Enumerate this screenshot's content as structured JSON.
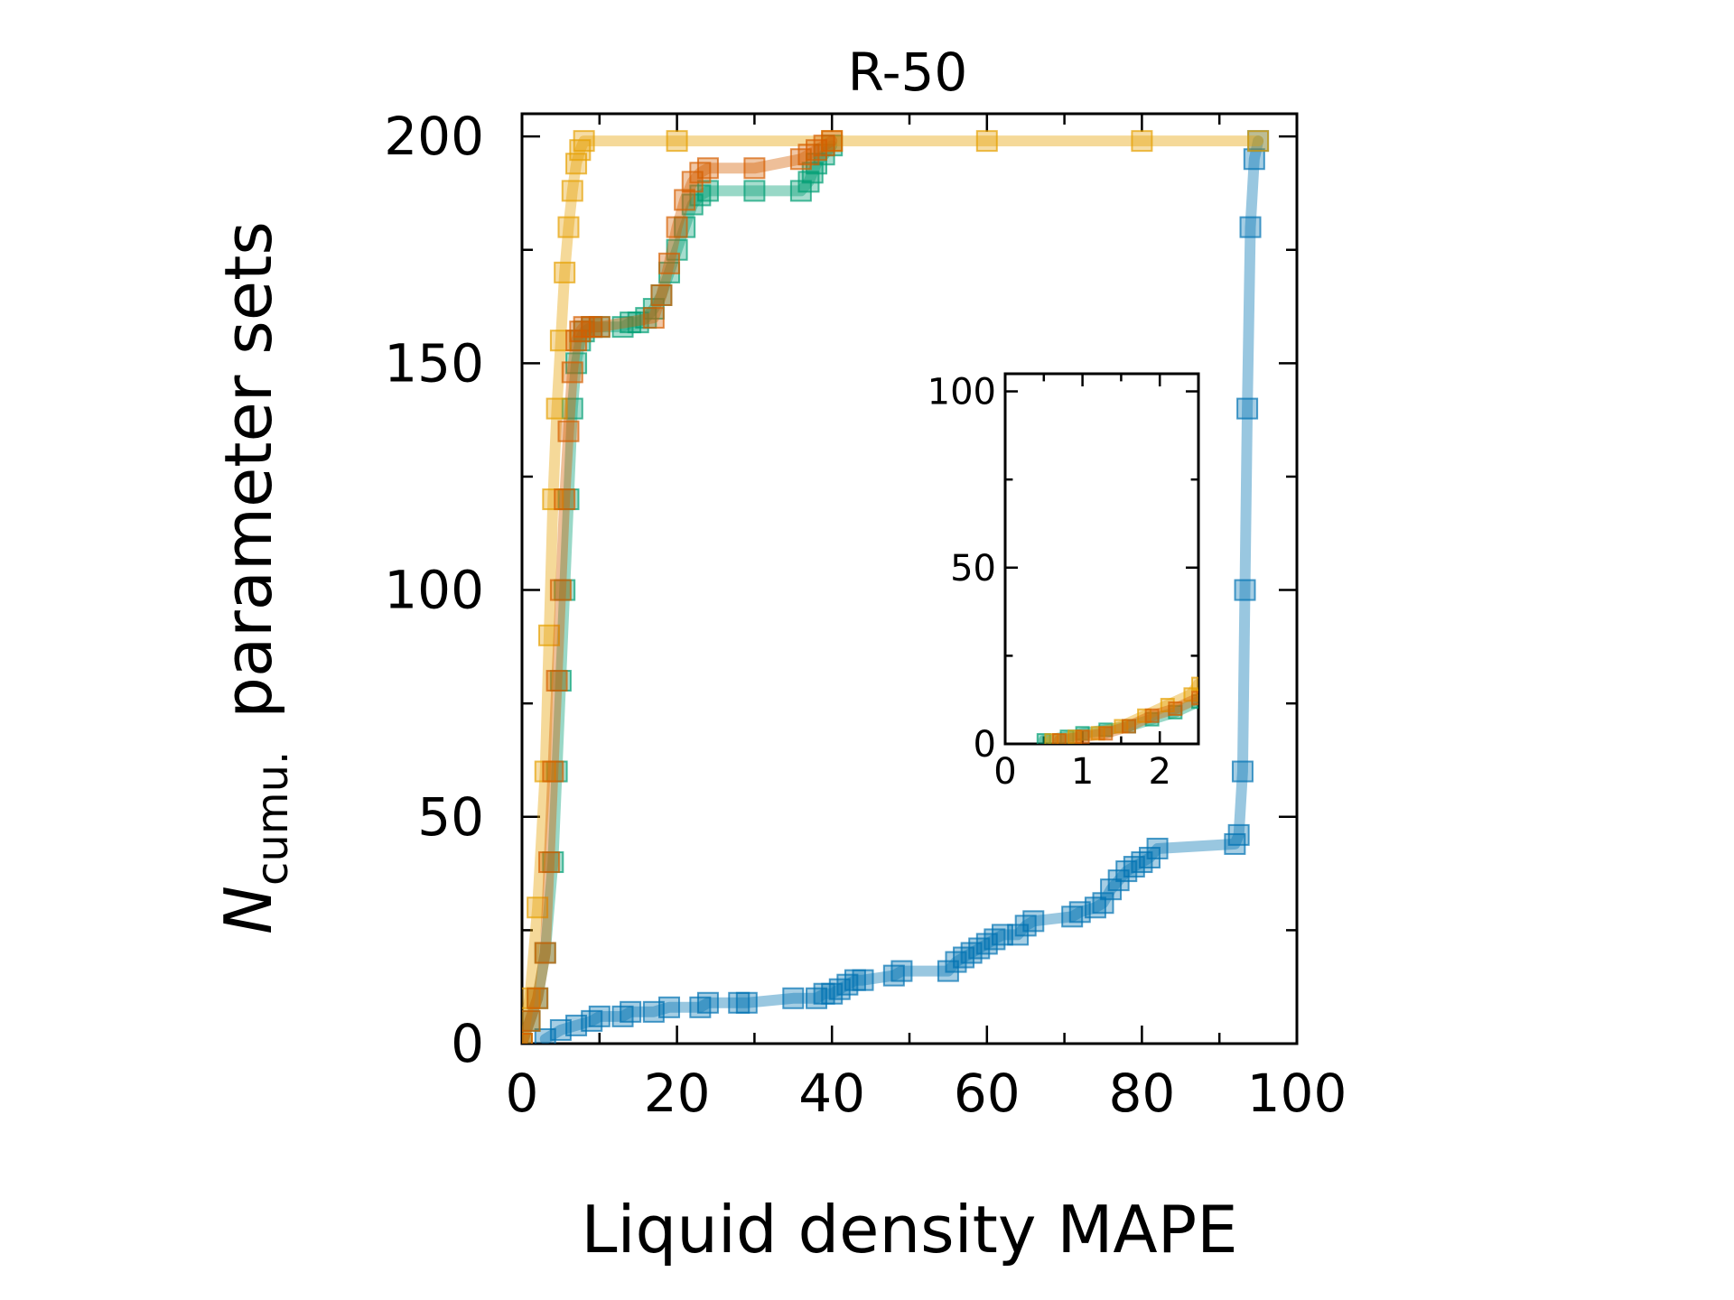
{
  "chart_data": [
    {
      "type": "line",
      "title": "R-50",
      "xlabel": "Liquid density MAPE",
      "ylabel_main": "N",
      "ylabel_sub": "cumu.",
      "ylabel_rest": "parameter sets",
      "xlim": [
        0,
        100
      ],
      "ylim": [
        0,
        205
      ],
      "xticks": [
        "0",
        "20",
        "40",
        "60",
        "80",
        "100"
      ],
      "yticks": [
        "0",
        "50",
        "100",
        "150",
        "200"
      ],
      "series": [
        {
          "name": "blue",
          "color": "#0072B2",
          "x": [
            3,
            5,
            7,
            9,
            10,
            13,
            14,
            17,
            19,
            23,
            24,
            28,
            29,
            35,
            38,
            39,
            40,
            41,
            42,
            43,
            44,
            48,
            49,
            55,
            56,
            57,
            58,
            59,
            60,
            61,
            62,
            64,
            65,
            66,
            71,
            72,
            74,
            75,
            76,
            77,
            78,
            79,
            80,
            81,
            82,
            92,
            92.5,
            93,
            93.3,
            93.6,
            94,
            94.5,
            95
          ],
          "y": [
            1,
            3,
            4,
            5,
            6,
            6,
            7,
            7,
            8,
            8,
            9,
            9,
            9,
            10,
            10,
            11,
            11,
            12,
            13,
            14,
            14,
            15,
            16,
            16,
            18,
            19,
            20,
            21,
            22,
            23,
            24,
            24,
            26,
            27,
            28,
            29,
            30,
            31,
            34,
            36,
            38,
            39,
            40,
            41,
            43,
            44,
            46,
            60,
            100,
            140,
            180,
            195,
            199
          ]
        },
        {
          "name": "green",
          "color": "#009E73",
          "x": [
            0,
            1,
            2,
            3,
            4,
            4.5,
            5,
            5.5,
            6,
            6.5,
            7,
            7.5,
            8,
            9,
            10,
            13,
            14,
            15,
            16,
            17,
            18,
            19,
            20,
            21,
            22,
            23,
            24,
            30,
            36,
            37,
            37.5,
            38,
            39,
            40
          ],
          "y": [
            0,
            5,
            10,
            20,
            40,
            60,
            80,
            100,
            120,
            140,
            150,
            155,
            157,
            158,
            158,
            158,
            159,
            159,
            160,
            162,
            165,
            170,
            175,
            180,
            185,
            187,
            188,
            188,
            188,
            190,
            192,
            194,
            196,
            198
          ]
        },
        {
          "name": "orange",
          "color": "#E69F00",
          "x": [
            0,
            1,
            2,
            3,
            3.5,
            4,
            4.5,
            5,
            5.5,
            6,
            6.5,
            7,
            7.5,
            8,
            20,
            40,
            60,
            80,
            95
          ],
          "y": [
            0,
            10,
            30,
            60,
            90,
            120,
            140,
            155,
            170,
            180,
            188,
            194,
            197,
            199,
            199,
            199,
            199,
            199,
            199
          ]
        },
        {
          "name": "vermillion",
          "color": "#D55E00",
          "x": [
            0,
            1,
            2,
            3,
            3.5,
            4,
            4.5,
            5,
            5.5,
            6,
            6.5,
            7,
            7.5,
            8,
            9,
            10,
            17,
            18,
            19,
            20,
            21,
            22,
            23,
            24,
            30,
            36,
            37,
            38,
            39,
            40
          ],
          "y": [
            0,
            5,
            10,
            20,
            40,
            60,
            80,
            100,
            120,
            135,
            148,
            155,
            157,
            158,
            158,
            158,
            160,
            165,
            172,
            180,
            186,
            190,
            192,
            193,
            193,
            195,
            196,
            197,
            198,
            199
          ]
        }
      ]
    },
    {
      "type": "line",
      "title": "",
      "xlim": [
        0,
        2.5
      ],
      "ylim": [
        0,
        105
      ],
      "xticks": [
        "0",
        "1",
        "2"
      ],
      "yticks": [
        "0",
        "50",
        "100"
      ],
      "series": [
        {
          "name": "green",
          "color": "#009E73",
          "x": [
            0.5,
            0.8,
            1.0,
            1.3,
            1.6,
            1.9,
            2.2,
            2.5
          ],
          "y": [
            1,
            2,
            3,
            4,
            5,
            7,
            9,
            12
          ]
        },
        {
          "name": "orange",
          "color": "#E69F00",
          "x": [
            0.6,
            0.9,
            1.2,
            1.5,
            1.8,
            2.1,
            2.4,
            2.5
          ],
          "y": [
            1,
            2,
            3,
            5,
            8,
            11,
            14,
            17
          ]
        },
        {
          "name": "vermillion",
          "color": "#D55E00",
          "x": [
            0.7,
            1.0,
            1.3,
            1.6,
            1.9,
            2.2,
            2.5
          ],
          "y": [
            1,
            2,
            3,
            5,
            8,
            10,
            13
          ]
        }
      ]
    }
  ]
}
